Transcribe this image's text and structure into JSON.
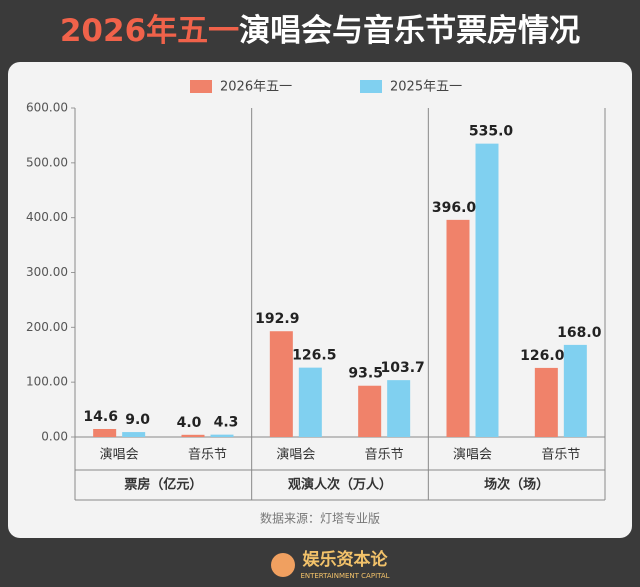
{
  "chart_data": {
    "type": "bar",
    "title_lead": "2026年五一",
    "title": "演唱会与音乐节票房情况",
    "groups": [
      "票房（亿元）",
      "观演人次（万人）",
      "场次（场）"
    ],
    "categories": [
      "演唱会",
      "音乐节",
      "演唱会",
      "音乐节",
      "演唱会",
      "音乐节"
    ],
    "series": [
      {
        "name": "2026年五一",
        "color": "#f0826a",
        "values": [
          14.6,
          4.0,
          192.9,
          93.5,
          396.0,
          126.0
        ],
        "value_labels": [
          "14.6",
          "4.0",
          "192.9",
          "93.5",
          "396.0",
          "126.0"
        ]
      },
      {
        "name": "2025年五一",
        "color": "#80d0f0",
        "values": [
          9.0,
          4.3,
          126.5,
          103.7,
          535.0,
          168.0
        ],
        "value_labels": [
          "9.0",
          "4.3",
          "126.5",
          "103.7",
          "535.0",
          "168.0"
        ]
      }
    ],
    "ylim": [
      0,
      600
    ],
    "yticks": [
      {
        "value": 0,
        "label": "0.00"
      },
      {
        "value": 100,
        "label": "100.00"
      },
      {
        "value": 200,
        "label": "200.00"
      },
      {
        "value": 300,
        "label": "300.00"
      },
      {
        "value": 400,
        "label": "400.00"
      },
      {
        "value": 500,
        "label": "500.00"
      },
      {
        "value": 600,
        "label": "600.00"
      }
    ],
    "grid": false,
    "source": "数据来源：灯塔专业版",
    "brand": "娱乐资本论",
    "brand_sub": "ENTERTAINMENT CAPITAL"
  }
}
